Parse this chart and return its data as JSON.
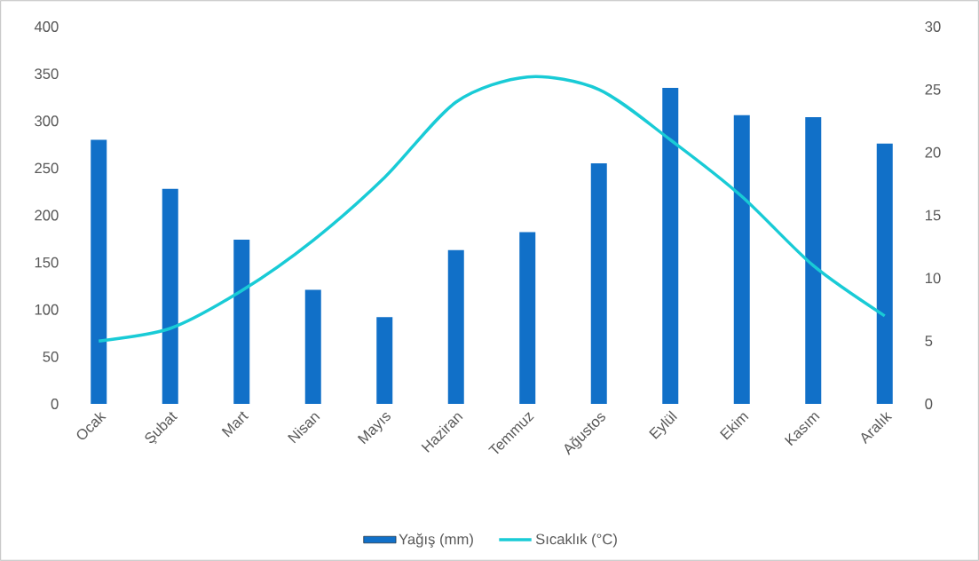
{
  "chart_data": {
    "type": "bar",
    "categories": [
      "Ocak",
      "Şubat",
      "Mart",
      "Nisan",
      "Mayıs",
      "Haziran",
      "Temmuz",
      "Ağustos",
      "Eylül",
      "Ekim",
      "Kasım",
      "Aralık"
    ],
    "series": [
      {
        "name": "Yağış (mm)",
        "color": "#1170c8",
        "values": [
          280,
          228,
          174,
          121,
          92,
          163,
          182,
          255,
          335,
          306,
          304,
          276
        ]
      },
      {
        "name": "Sıcaklık (°C)",
        "type": "line",
        "axis": "y2",
        "color": "#19cbd6",
        "values": [
          5,
          6,
          9,
          13,
          18,
          24,
          26,
          25,
          21,
          16.5,
          11,
          7
        ]
      }
    ],
    "ylim": [
      0,
      400
    ],
    "yticks": [
      0,
      50,
      100,
      150,
      200,
      250,
      300,
      350,
      400
    ],
    "y2lim": [
      0,
      30
    ],
    "y2ticks": [
      0,
      5,
      10,
      15,
      20,
      25,
      30
    ],
    "legend": "bottom",
    "grid": false
  }
}
